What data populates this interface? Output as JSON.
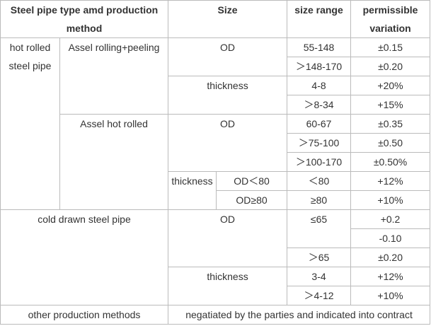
{
  "table": {
    "header": [
      "Steel pipe type amd production method",
      "Size",
      "size range",
      "permissible variation"
    ],
    "rows": [
      [
        "hot rolled steel pipe",
        "Assel rolling+peeling",
        "OD",
        "55-148",
        "±0.15"
      ],
      [
        "＞148-170",
        "±0.20"
      ],
      [
        "thickness",
        "4-8",
        "+20%"
      ],
      [
        "＞8-34",
        "+15%"
      ],
      [
        "Assel hot rolled",
        "OD",
        "60-67",
        "±0.35"
      ],
      [
        "＞75-100",
        "±0.50"
      ],
      [
        "＞100-170",
        "±0.50%"
      ],
      [
        "thickness",
        "OD＜80",
        "＜80",
        "+12%"
      ],
      [
        "OD≥80",
        "≥80",
        "+10%"
      ],
      [
        "cold drawn steel pipe",
        "OD",
        "≤65",
        "+0.2"
      ],
      [
        "-0.10"
      ],
      [
        "＞65",
        "±0.20"
      ],
      [
        "thickness",
        "3-4",
        "+12%"
      ],
      [
        "＞4-12",
        "+10%"
      ],
      [
        "other production methods",
        "negatiated by the parties and indicated into contract"
      ]
    ]
  }
}
